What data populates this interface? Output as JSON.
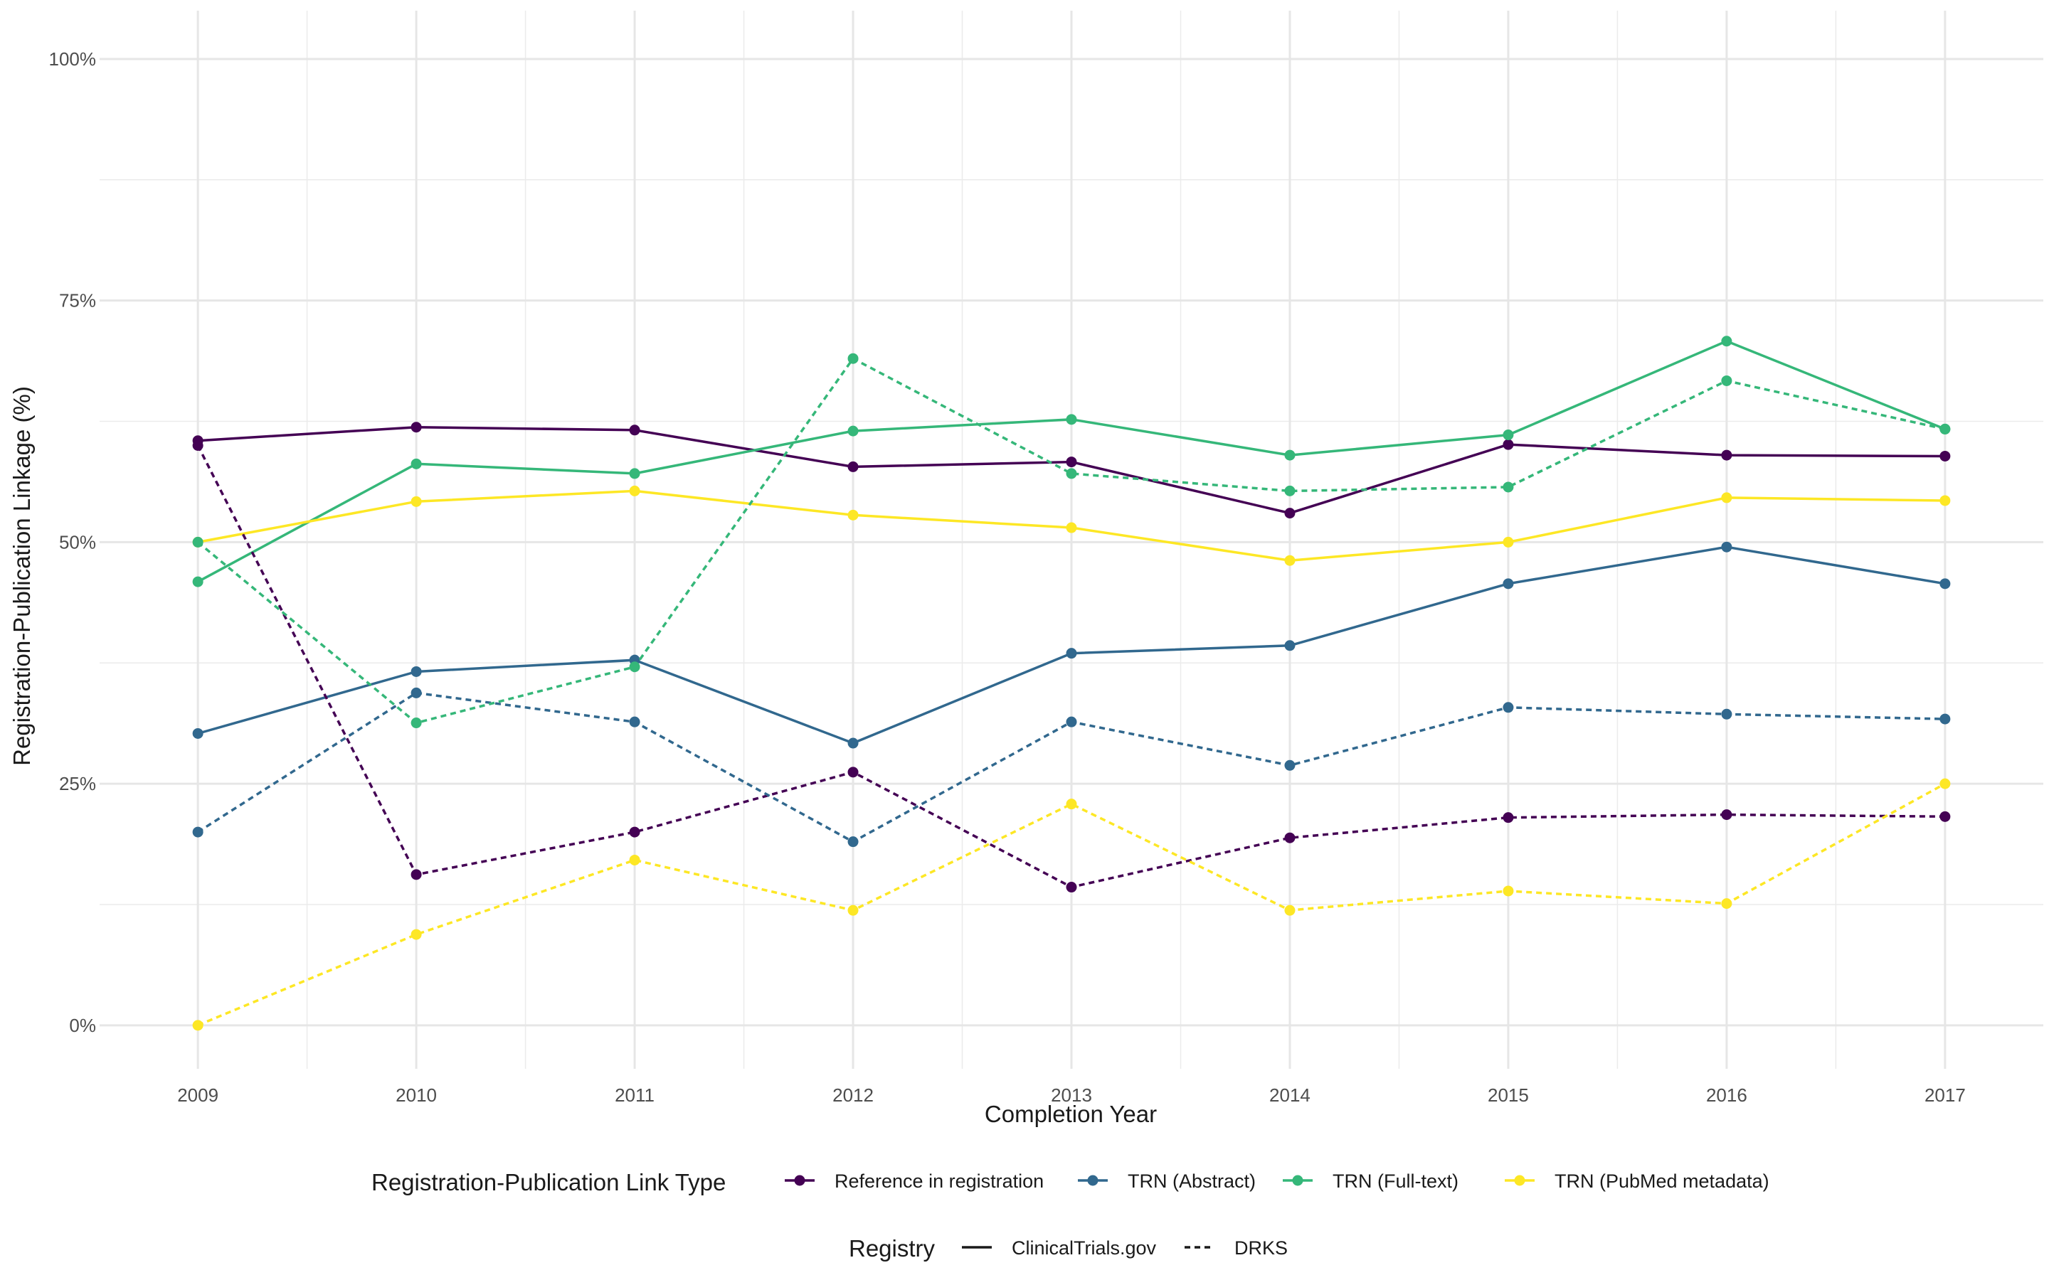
{
  "chart_data": {
    "type": "line",
    "title": "",
    "xlabel": "Completion Year",
    "ylabel": "Registration-Publication Linkage (%)",
    "x": [
      2009,
      2010,
      2011,
      2012,
      2013,
      2014,
      2015,
      2016,
      2017
    ],
    "x_tick_labels": [
      "2009",
      "2010",
      "2011",
      "2012",
      "2013",
      "2014",
      "2015",
      "2016",
      "2017"
    ],
    "ylim": [
      -0.045,
      1.05
    ],
    "y_ticks": [
      0,
      0.25,
      0.5,
      0.75,
      1.0
    ],
    "y_tick_labels": [
      "0%",
      "25%",
      "50%",
      "75%",
      "100%"
    ],
    "grid": true,
    "legend_position": "bottom",
    "color_legend": {
      "title": "Registration-Publication Link Type",
      "entries": [
        {
          "name": "Reference in registration",
          "color": "#440154"
        },
        {
          "name": "TRN (Abstract)",
          "color": "#31688E"
        },
        {
          "name": "TRN (Full-text)",
          "color": "#35B779"
        },
        {
          "name": "TRN (PubMed metadata)",
          "color": "#FDE725"
        }
      ]
    },
    "linetype_legend": {
      "title": "Registry",
      "entries": [
        {
          "name": "ClinicalTrials.gov",
          "linetype": "solid"
        },
        {
          "name": "DRKS",
          "linetype": "dashed"
        }
      ]
    },
    "series": [
      {
        "link_type": "Reference in registration",
        "registry": "ClinicalTrials.gov",
        "values": [
          0.605,
          0.619,
          0.616,
          0.578,
          0.583,
          0.53,
          0.601,
          0.59,
          0.589
        ]
      },
      {
        "link_type": "TRN (Abstract)",
        "registry": "ClinicalTrials.gov",
        "values": [
          0.302,
          0.366,
          0.378,
          0.292,
          0.385,
          0.393,
          0.457,
          0.495,
          0.457
        ]
      },
      {
        "link_type": "TRN (Full-text)",
        "registry": "ClinicalTrials.gov",
        "values": [
          0.459,
          0.581,
          0.571,
          0.615,
          0.627,
          0.59,
          0.611,
          0.708,
          0.617
        ]
      },
      {
        "link_type": "TRN (PubMed metadata)",
        "registry": "ClinicalTrials.gov",
        "values": [
          0.5,
          0.542,
          0.553,
          0.528,
          0.515,
          0.481,
          0.5,
          0.546,
          0.543
        ]
      },
      {
        "link_type": "Reference in registration",
        "registry": "DRKS",
        "values": [
          0.6,
          0.156,
          0.2,
          0.262,
          0.143,
          0.194,
          0.215,
          0.218,
          0.216
        ]
      },
      {
        "link_type": "TRN (Abstract)",
        "registry": "DRKS",
        "values": [
          0.2,
          0.344,
          0.314,
          0.19,
          0.314,
          0.269,
          0.329,
          0.322,
          0.317
        ]
      },
      {
        "link_type": "TRN (Full-text)",
        "registry": "DRKS",
        "values": [
          0.5,
          0.313,
          0.371,
          0.69,
          0.571,
          0.553,
          0.557,
          0.667,
          0.617
        ]
      },
      {
        "link_type": "TRN (PubMed metadata)",
        "registry": "DRKS",
        "values": [
          0.0,
          0.094,
          0.171,
          0.119,
          0.229,
          0.119,
          0.139,
          0.126,
          0.25
        ]
      }
    ]
  }
}
